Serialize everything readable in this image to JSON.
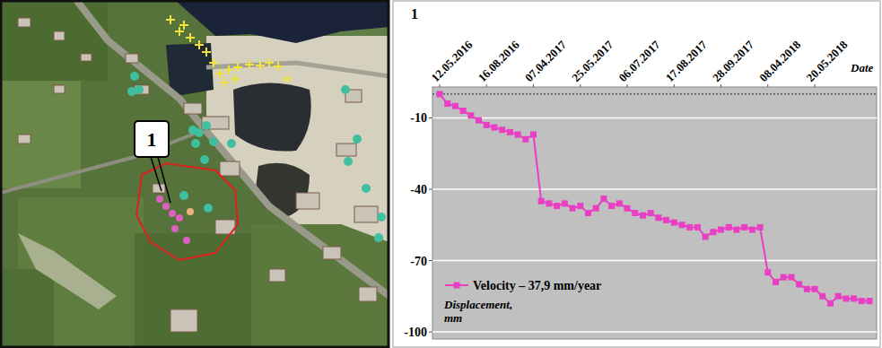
{
  "map": {
    "label": "1"
  },
  "chart_data": {
    "type": "line",
    "title": "1",
    "x_label": "Date",
    "y_label": "Displacement, mm",
    "categories": [
      "12.05.2016",
      null,
      null,
      null,
      null,
      null,
      "16.08.2016",
      null,
      null,
      null,
      null,
      null,
      "07.04.2017",
      null,
      null,
      null,
      null,
      null,
      "25.05.2017",
      null,
      null,
      null,
      null,
      null,
      "06.07.2017",
      null,
      null,
      null,
      null,
      null,
      "17.08.2017",
      null,
      null,
      null,
      null,
      null,
      "28.09.2017",
      null,
      null,
      null,
      null,
      null,
      "08.04.2018",
      null,
      null,
      null,
      null,
      null,
      "20.05.2018",
      null,
      null,
      null,
      null,
      null,
      null,
      null
    ],
    "series": [
      {
        "name": "Velocity – 37,9 mm/year",
        "color": "#e83fc4",
        "marker": "square",
        "line_style": "solid",
        "values": [
          0,
          -4,
          -5,
          -7,
          -9,
          -11,
          -13,
          -14,
          -15,
          -16,
          -17,
          -19,
          -17,
          -45,
          -46,
          -47,
          -46,
          -48,
          -47,
          -50,
          -48,
          -44,
          -47,
          -46,
          -48,
          -50,
          -51,
          -50,
          -52,
          -53,
          -54,
          -55,
          -56,
          -56,
          -60,
          -58,
          -57,
          -56,
          -57,
          -56,
          -57,
          -56,
          -75,
          -79,
          -77,
          -77,
          -80,
          -82,
          -82,
          -85,
          -88,
          -85,
          -86,
          -86,
          -87,
          -87
        ]
      }
    ],
    "ylim": [
      -103,
      3
    ],
    "yticks": [
      -10,
      -40,
      -70,
      -100
    ],
    "reference_y": 0,
    "grid": true,
    "legend": "lower-left"
  }
}
